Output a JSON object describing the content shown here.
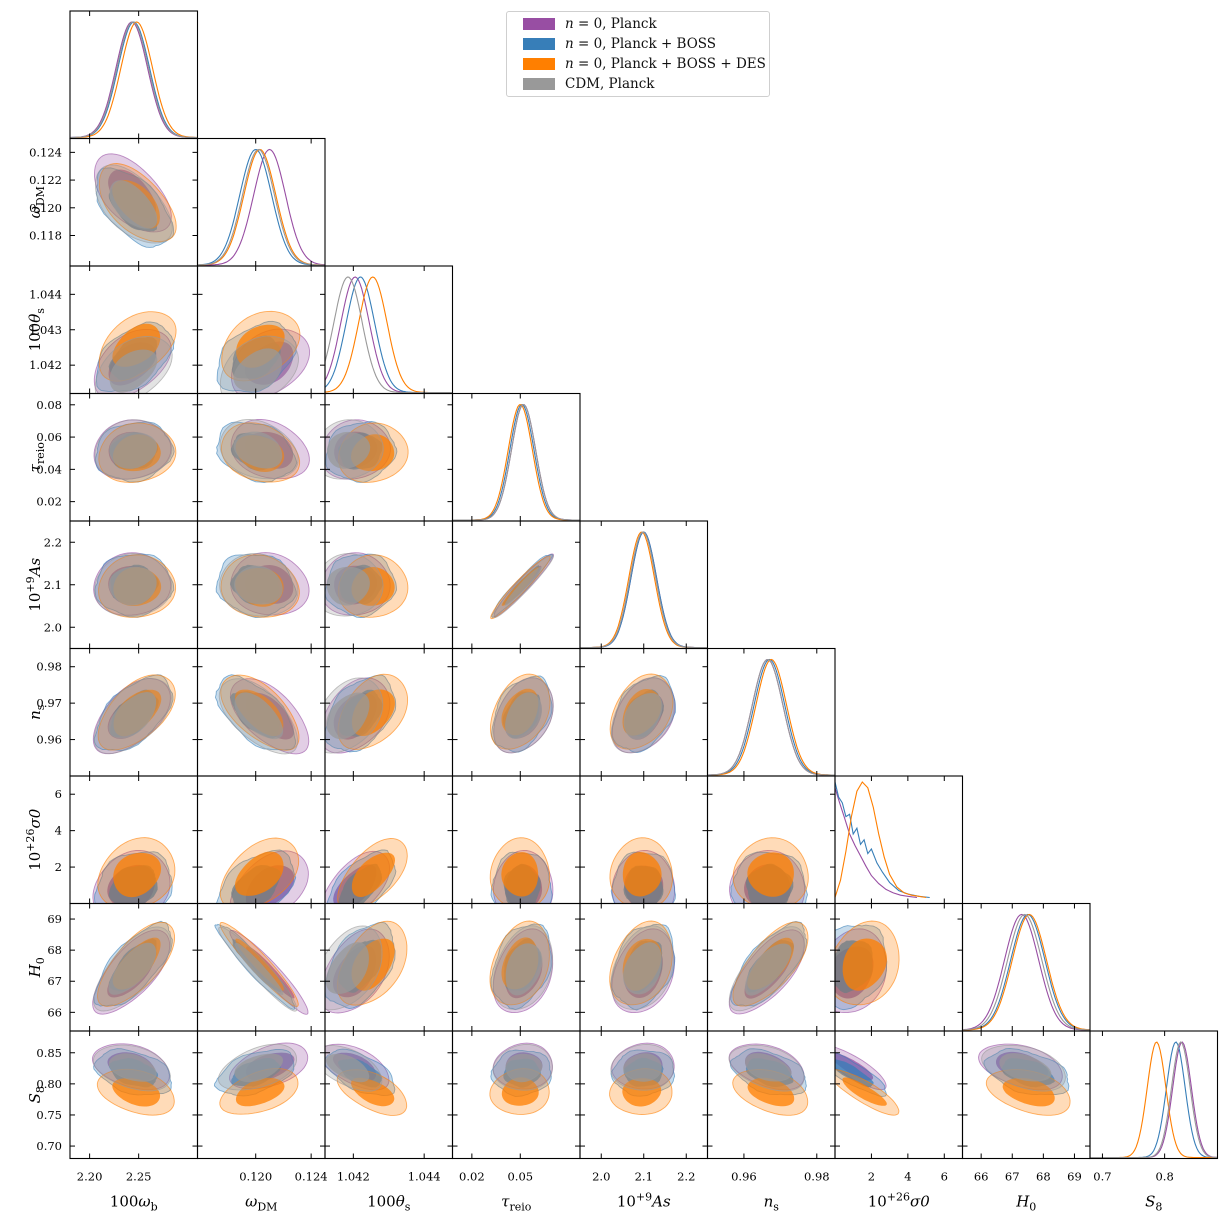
{
  "chart_data": {
    "type": "triangle-corner-plot",
    "title": "",
    "series": [
      {
        "name": "n = 0, Planck",
        "color": "#984ea3",
        "means": [
          2.243,
          0.121,
          1.04205,
          0.052,
          2.1,
          0.9665,
          0.9,
          67.3,
          0.828
        ],
        "smooth": true
      },
      {
        "name": "n = 0, Planck + BOSS",
        "color": "#377eb8",
        "means": [
          2.245,
          0.12,
          1.0422,
          0.051,
          2.1,
          0.967,
          0.9,
          67.5,
          0.818
        ],
        "smooth": false
      },
      {
        "name": "n = 0, Planck + BOSS + DES",
        "color": "#ff7f00",
        "means": [
          2.248,
          0.1203,
          1.04255,
          0.05,
          2.095,
          0.9675,
          1.6,
          67.55,
          0.787
        ],
        "smooth": true
      },
      {
        "name": "CDM, Planck",
        "color": "#999999",
        "means": [
          2.244,
          0.1202,
          1.04185,
          0.052,
          2.098,
          0.9665,
          null,
          67.4,
          0.826
        ],
        "smooth": true
      }
    ],
    "parameters": [
      {
        "label": "100ωb",
        "range": [
          2.18,
          2.31
        ],
        "ticks": [
          "2.20",
          "2.25"
        ],
        "tickvals": [
          2.2,
          2.25
        ],
        "sigma": 0.016
      },
      {
        "label": "ωDM",
        "range": [
          0.1158,
          0.125
        ],
        "ticks": [
          "0.118",
          "0.120",
          "0.122",
          "0.124"
        ],
        "tickvals": [
          0.118,
          0.12,
          0.122,
          0.124
        ],
        "xticks": [
          "0.120",
          "0.124"
        ],
        "xtickvals": [
          0.12,
          0.124
        ],
        "sigma": 0.00115
      },
      {
        "label": "100θs",
        "range": [
          1.0412,
          1.0448
        ],
        "ticks": [
          "1.042",
          "1.043",
          "1.044"
        ],
        "tickvals": [
          1.042,
          1.043,
          1.044
        ],
        "xticks": [
          "1.042",
          "1.044"
        ],
        "xtickvals": [
          1.042,
          1.044
        ],
        "sigma": 0.0004
      },
      {
        "label": "τreio",
        "range": [
          0.008,
          0.087
        ],
        "ticks": [
          "0.02",
          "0.04",
          "0.06",
          "0.08"
        ],
        "tickvals": [
          0.02,
          0.04,
          0.06,
          0.08
        ],
        "xticks": [
          "0.02",
          "0.05"
        ],
        "xtickvals": [
          0.02,
          0.05
        ],
        "sigma": 0.0075
      },
      {
        "label": "10+9As",
        "range": [
          1.95,
          2.25
        ],
        "ticks": [
          "2.0",
          "2.1",
          "2.2"
        ],
        "tickvals": [
          2.0,
          2.1,
          2.2
        ],
        "sigma": 0.03
      },
      {
        "label": "ns",
        "range": [
          0.95,
          0.985
        ],
        "ticks": [
          "0.96",
          "0.97",
          "0.98"
        ],
        "tickvals": [
          0.96,
          0.97,
          0.98
        ],
        "xticks": [
          "0.96",
          "0.98"
        ],
        "xtickvals": [
          0.96,
          0.98
        ],
        "sigma": 0.0042
      },
      {
        "label": "10+26σ0",
        "range": [
          0,
          7
        ],
        "ticks": [
          "2",
          "4",
          "6"
        ],
        "tickvals": [
          2,
          4,
          6
        ],
        "sigma": 0.8
      },
      {
        "label": "H0",
        "range": [
          65.4,
          69.5
        ],
        "ticks": [
          "66",
          "67",
          "68",
          "69"
        ],
        "tickvals": [
          66,
          67,
          68,
          69
        ],
        "sigma": 0.55
      },
      {
        "label": "S8",
        "range": [
          0.68,
          0.885
        ],
        "ticks": [
          "0.70",
          "0.75",
          "0.80",
          "0.85"
        ],
        "tickvals": [
          0.7,
          0.75,
          0.8,
          0.85
        ],
        "xticks": [
          "0.7",
          "0.8"
        ],
        "xtickvals": [
          0.7,
          0.8
        ],
        "sigma": 0.015
      }
    ],
    "sigma0_pdf": {
      "n = 0, Planck": {
        "x": [
          0,
          0.25,
          0.5,
          0.8,
          1.1,
          1.4,
          1.7,
          2.0,
          2.4,
          2.8,
          3.2,
          3.6,
          4.0,
          4.5
        ],
        "y": [
          0.95,
          0.82,
          0.7,
          0.55,
          0.45,
          0.36,
          0.27,
          0.19,
          0.12,
          0.07,
          0.04,
          0.02,
          0.01,
          0.0
        ]
      },
      "n = 0, Planck + BOSS": {
        "x": [
          0,
          0.2,
          0.4,
          0.6,
          0.8,
          1.0,
          1.2,
          1.4,
          1.6,
          1.8,
          2.0,
          2.3,
          2.6,
          3.0,
          3.5,
          4.0,
          4.6,
          5.2
        ],
        "y": [
          1.0,
          0.87,
          0.82,
          0.7,
          0.72,
          0.55,
          0.6,
          0.46,
          0.5,
          0.38,
          0.42,
          0.3,
          0.22,
          0.13,
          0.06,
          0.03,
          0.01,
          0.0
        ]
      },
      "n = 0, Planck + BOSS + DES": {
        "x": [
          0,
          0.3,
          0.6,
          0.9,
          1.2,
          1.5,
          1.8,
          2.1,
          2.4,
          2.7,
          3.0,
          3.4,
          3.8,
          4.2,
          4.6,
          5.0
        ],
        "y": [
          0.0,
          0.15,
          0.4,
          0.7,
          0.92,
          1.0,
          0.95,
          0.78,
          0.55,
          0.35,
          0.2,
          0.09,
          0.04,
          0.02,
          0.01,
          0.0
        ]
      }
    }
  },
  "legend": {
    "items": [
      {
        "math": "n",
        "rest": " = 0, Planck",
        "color": "#984ea3"
      },
      {
        "math": "n",
        "rest": " = 0, Planck + BOSS",
        "color": "#377eb8"
      },
      {
        "math": "n",
        "rest": " = 0, Planck + BOSS + DES",
        "color": "#ff7f00"
      },
      {
        "math": "",
        "rest": "CDM, Planck",
        "color": "#999999"
      }
    ]
  },
  "axis_titles": {
    "x": [
      "100ωb",
      "ωDM",
      "100θs",
      "τreio",
      "10+9As",
      "ns",
      "10+26σ0",
      "H0",
      "S8"
    ],
    "y": [
      "ωDM",
      "100θs",
      "τreio",
      "10+9As",
      "ns",
      "10+26σ0",
      "H0",
      "S8"
    ]
  }
}
